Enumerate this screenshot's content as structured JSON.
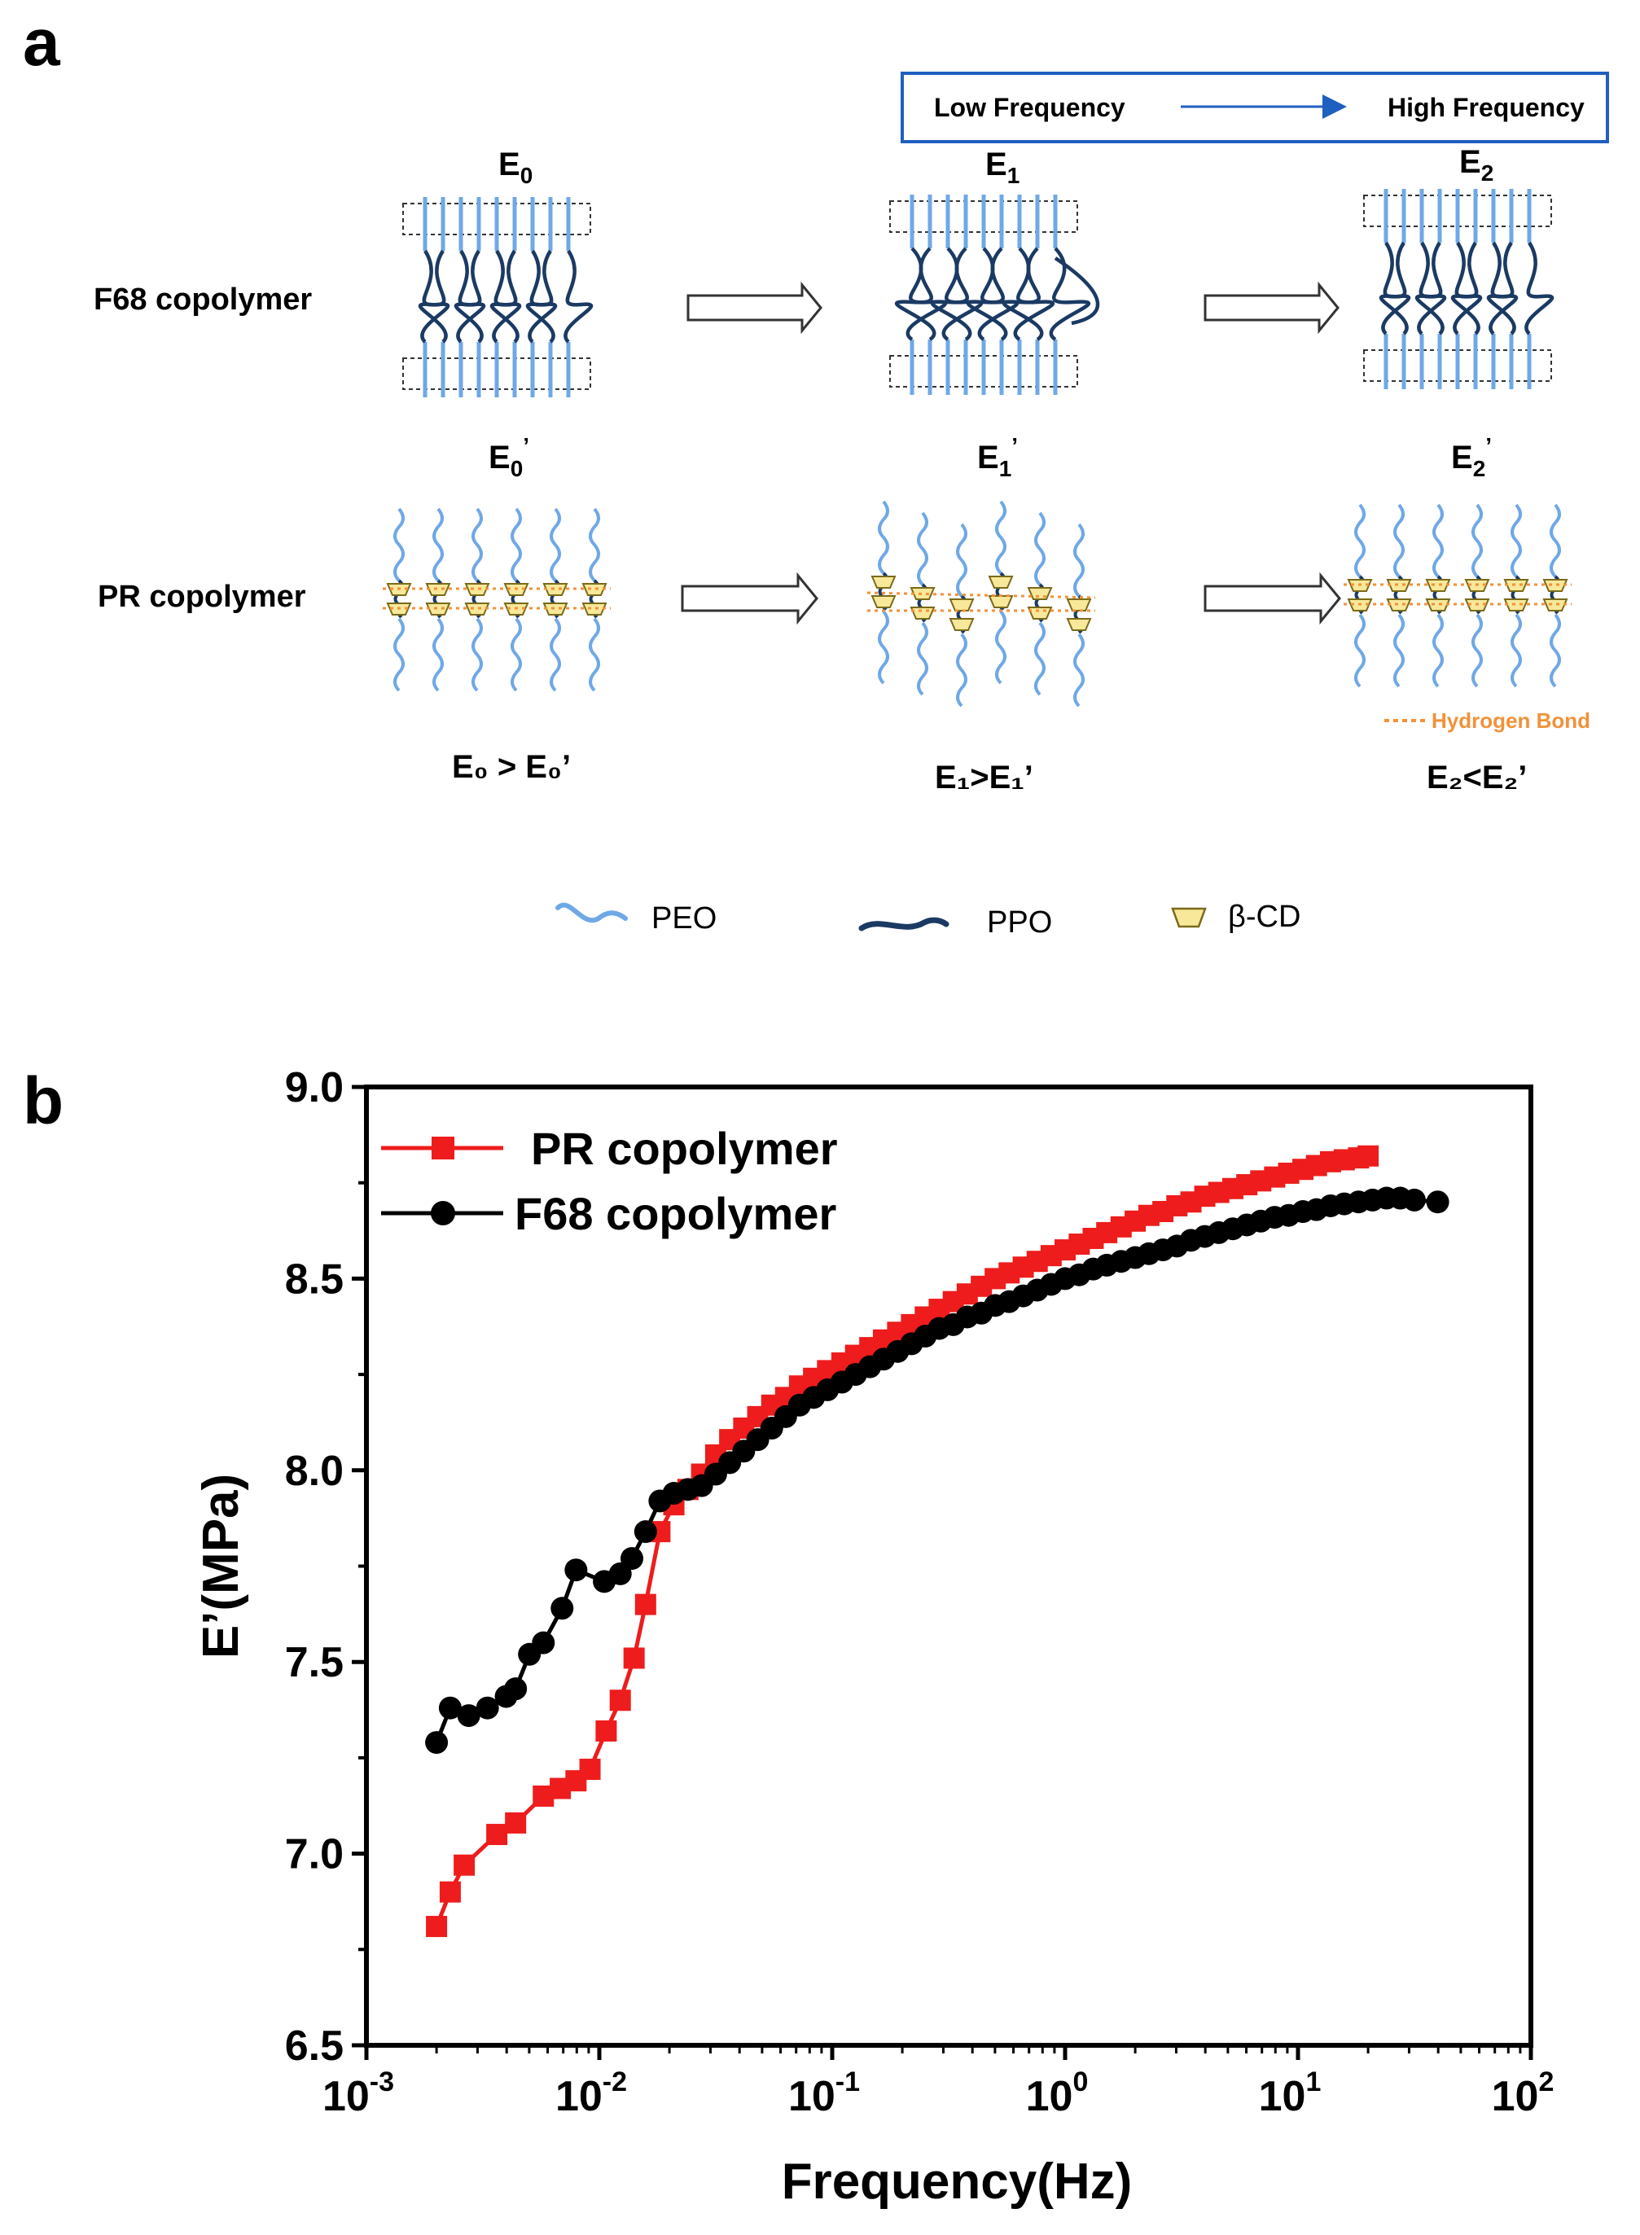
{
  "panel_a": {
    "panel_label": "a",
    "frequency_box": {
      "low": "Low Frequency",
      "high": "High Frequency"
    },
    "row_labels": {
      "f68": "F68 copolymer",
      "pr": "PR copolymer"
    },
    "states": [
      {
        "top": "E",
        "top_sub": "0",
        "bottom": "E",
        "bottom_sub": "0",
        "prime": "’",
        "compare": "E₀ > E₀’"
      },
      {
        "top": "E",
        "top_sub": "1",
        "bottom": "E",
        "bottom_sub": "1",
        "prime": "’",
        "compare": "E₁>E₁’"
      },
      {
        "top": "E",
        "top_sub": "2",
        "bottom": "E",
        "bottom_sub": "2",
        "prime": "’",
        "compare": "E₂<E₂’"
      }
    ],
    "hydrogen_bond_label": "Hydrogen Bond",
    "legend": {
      "peo": "PEO",
      "ppo": "PPO",
      "bcd": "β-CD"
    },
    "colors": {
      "peo": "#6fa8e6",
      "ppo": "#1b3a63",
      "bcd_fill": "#f7e89a",
      "bcd_stroke": "#7a6a1a",
      "hbond": "#f0923a",
      "freq_box": "#1f5fbf"
    }
  },
  "panel_b": {
    "panel_label": "b",
    "chart_data": {
      "type": "line",
      "title": "",
      "xlabel": "Frequency(Hz)",
      "ylabel": "E’(MPa)",
      "x_scale": "log",
      "xlim": [
        0.001,
        100
      ],
      "ylim": [
        6.5,
        9.0
      ],
      "x_ticks": [
        {
          "value": 0.001,
          "base": "10",
          "exp": "-3"
        },
        {
          "value": 0.01,
          "base": "10",
          "exp": "-2"
        },
        {
          "value": 0.1,
          "base": "10",
          "exp": "-1"
        },
        {
          "value": 1,
          "base": "10",
          "exp": "0"
        },
        {
          "value": 10,
          "base": "10",
          "exp": "1"
        },
        {
          "value": 100,
          "base": "10",
          "exp": "2"
        }
      ],
      "y_ticks": [
        "6.5",
        "7.0",
        "7.5",
        "8.0",
        "8.5",
        "9.0"
      ],
      "legend_position": "top-left",
      "grid": false,
      "series": [
        {
          "name": "PR copolymer",
          "color": "#ee1c1c",
          "marker": "square",
          "x": [
            0.002,
            0.00229,
            0.00263,
            0.00363,
            0.00437,
            0.00575,
            0.0068,
            0.00794,
            0.00912,
            0.0107,
            0.0123,
            0.0141,
            0.0158,
            0.0182,
            0.0209,
            0.024,
            0.0275,
            0.0316,
            0.0363,
            0.0417,
            0.0479,
            0.055,
            0.0631,
            0.0724,
            0.0832,
            0.0955,
            0.11,
            0.126,
            0.145,
            0.166,
            0.191,
            0.219,
            0.251,
            0.288,
            0.331,
            0.38,
            0.437,
            0.501,
            0.575,
            0.661,
            0.759,
            0.871,
            1.0,
            1.15,
            1.32,
            1.51,
            1.74,
            2.0,
            2.29,
            2.63,
            3.02,
            3.47,
            3.98,
            4.57,
            5.25,
            6.03,
            6.92,
            7.94,
            9.12,
            10.5,
            12.0,
            13.8,
            15.8,
            18.2,
            20.0
          ],
          "y": [
            6.81,
            6.9,
            6.97,
            7.05,
            7.08,
            7.15,
            7.17,
            7.19,
            7.22,
            7.32,
            7.4,
            7.51,
            7.65,
            7.84,
            7.91,
            7.95,
            7.99,
            8.04,
            8.08,
            8.11,
            8.14,
            8.17,
            8.19,
            8.22,
            8.24,
            8.26,
            8.28,
            8.3,
            8.32,
            8.34,
            8.36,
            8.38,
            8.4,
            8.42,
            8.44,
            8.46,
            8.48,
            8.5,
            8.515,
            8.53,
            8.545,
            8.56,
            8.575,
            8.59,
            8.605,
            8.62,
            8.635,
            8.65,
            8.665,
            8.675,
            8.69,
            8.7,
            8.715,
            8.725,
            8.735,
            8.745,
            8.755,
            8.765,
            8.775,
            8.785,
            8.795,
            8.805,
            8.81,
            8.815,
            8.82
          ]
        },
        {
          "name": "F68 copolymer",
          "color": "#000000",
          "marker": "circle",
          "x": [
            0.002,
            0.00229,
            0.00275,
            0.00331,
            0.00398,
            0.00437,
            0.00501,
            0.00575,
            0.00692,
            0.00794,
            0.0105,
            0.0123,
            0.0138,
            0.0158,
            0.0182,
            0.0209,
            0.024,
            0.0275,
            0.0316,
            0.0363,
            0.0417,
            0.0479,
            0.055,
            0.0631,
            0.0724,
            0.0832,
            0.0955,
            0.11,
            0.126,
            0.145,
            0.166,
            0.191,
            0.219,
            0.251,
            0.288,
            0.331,
            0.38,
            0.437,
            0.501,
            0.575,
            0.661,
            0.759,
            0.871,
            1.0,
            1.15,
            1.32,
            1.51,
            1.74,
            2.0,
            2.29,
            2.63,
            3.02,
            3.47,
            3.98,
            4.57,
            5.25,
            6.03,
            6.92,
            7.94,
            9.12,
            10.5,
            12.0,
            13.8,
            15.8,
            18.2,
            20.9,
            24.0,
            27.5,
            31.6,
            39.8
          ],
          "y": [
            7.29,
            7.38,
            7.36,
            7.38,
            7.41,
            7.43,
            7.52,
            7.55,
            7.64,
            7.74,
            7.71,
            7.73,
            7.77,
            7.84,
            7.92,
            7.94,
            7.95,
            7.96,
            7.99,
            8.02,
            8.05,
            8.08,
            8.11,
            8.14,
            8.17,
            8.19,
            8.21,
            8.23,
            8.25,
            8.27,
            8.29,
            8.31,
            8.33,
            8.35,
            8.37,
            8.38,
            8.4,
            8.41,
            8.43,
            8.44,
            8.455,
            8.47,
            8.485,
            8.5,
            8.51,
            8.525,
            8.535,
            8.545,
            8.555,
            8.565,
            8.575,
            8.585,
            8.6,
            8.61,
            8.62,
            8.63,
            8.64,
            8.65,
            8.66,
            8.665,
            8.675,
            8.68,
            8.69,
            8.695,
            8.7,
            8.705,
            8.71,
            8.71,
            8.705,
            8.7
          ]
        }
      ]
    }
  }
}
